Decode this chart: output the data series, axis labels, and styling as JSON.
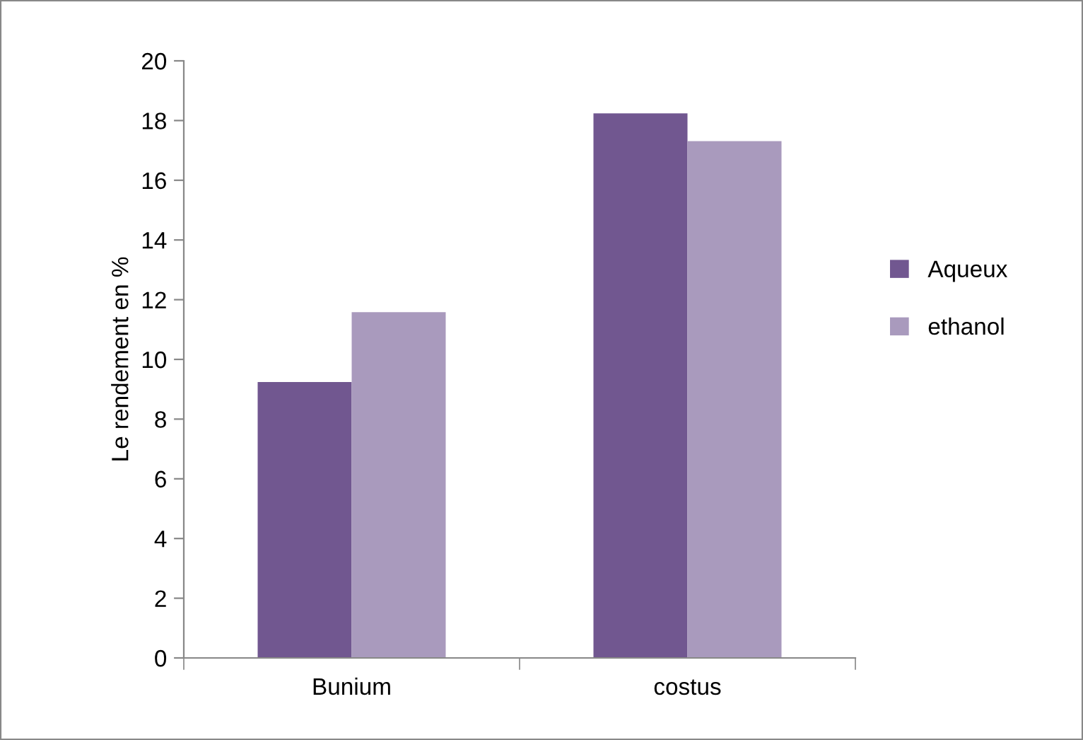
{
  "chart_data": {
    "type": "bar",
    "ylabel": "Le rendement en %",
    "categories": [
      "Bunium",
      "costus"
    ],
    "series": [
      {
        "name": "Aqueux",
        "color": "#715790",
        "values": [
          9.24,
          18.24
        ]
      },
      {
        "name": "ethanol",
        "color": "#a99abd",
        "values": [
          11.58,
          17.31
        ]
      }
    ],
    "ylim": [
      0,
      20
    ],
    "yticks": [
      0,
      2,
      4,
      6,
      8,
      10,
      12,
      14,
      16,
      18,
      20
    ],
    "grid": false,
    "legend": "right"
  }
}
